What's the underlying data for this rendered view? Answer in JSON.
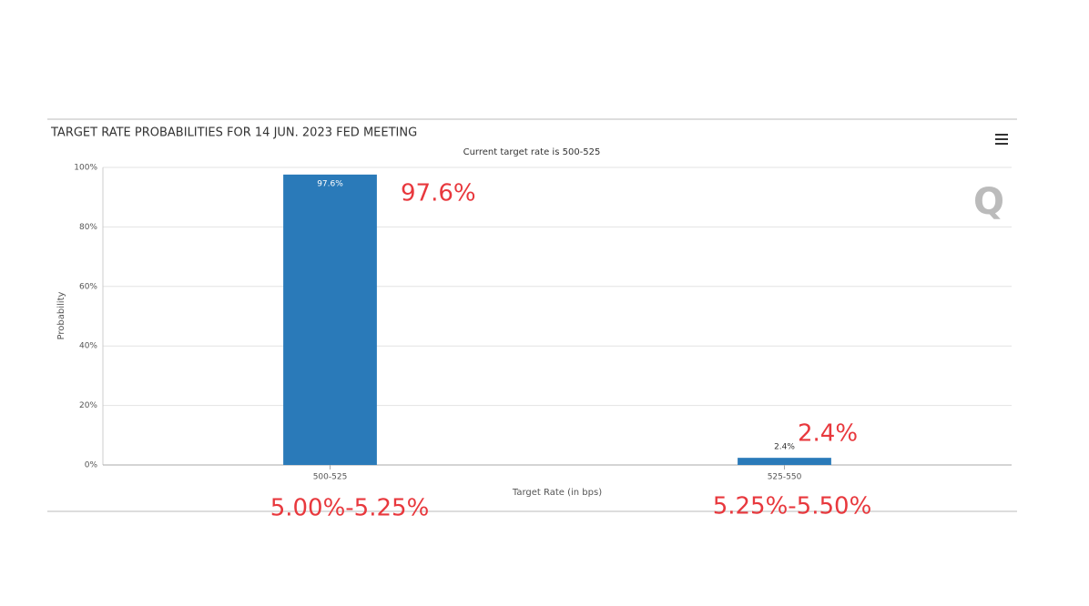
{
  "chart_data": {
    "type": "bar",
    "title": "TARGET RATE PROBABILITIES FOR 14 JUN. 2023 FED MEETING",
    "subtitle": "Current target rate is 500-525",
    "y_label": "Probability",
    "x_label": "Target Rate (in bps)",
    "categories": [
      "500-525",
      "525-550"
    ],
    "values": [
      97.6,
      2.4
    ],
    "value_labels": [
      "97.6%",
      "2.4%"
    ],
    "color": "#2a7ab9",
    "ylim": [
      0,
      100
    ],
    "yticks": [
      {
        "value": 0,
        "label": "0%"
      },
      {
        "value": 20,
        "label": "20%"
      },
      {
        "value": 40,
        "label": "40%"
      },
      {
        "value": 60,
        "label": "60%"
      },
      {
        "value": 80,
        "label": "80%"
      },
      {
        "value": 100,
        "label": "100%"
      }
    ],
    "grid": true,
    "annotations": [
      "97.6%",
      "2.4%",
      "5.00%-5.25%",
      "5.25%-5.50%"
    ],
    "annotation_color": "#e8383d"
  }
}
